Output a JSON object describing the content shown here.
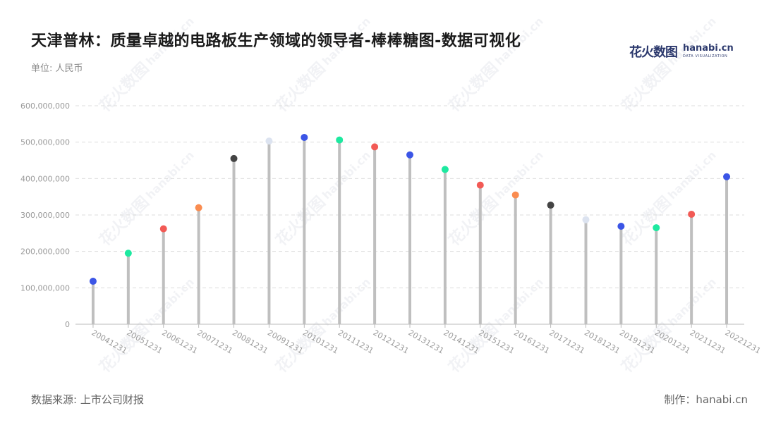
{
  "title": "天津普林：质量卓越的电路板生产领域的领导者-棒棒糖图-数据可视化",
  "unit_label": "单位: 人民币",
  "brand": {
    "zh": "花火数图",
    "en": "hanabi.cn",
    "sub": "DATA VISUALIZATION",
    "primary_color": "#2d3a6e"
  },
  "footer": {
    "source": "数据来源: 上市公司财报",
    "maker": "制作：hanabi.cn"
  },
  "chart_data": {
    "type": "lollipop",
    "title": "天津普林：质量卓越的电路板生产领域的领导者-棒棒糖图-数据可视化",
    "ylabel": "单位: 人民币",
    "ylim": [
      0,
      600000000
    ],
    "y_ticks": [
      0,
      100000000,
      200000000,
      300000000,
      400000000,
      500000000,
      600000000
    ],
    "y_tick_labels": [
      "0",
      "100,000,000",
      "200,000,000",
      "300,000,000",
      "400,000,000",
      "500,000,000",
      "600,000,000"
    ],
    "grid": true,
    "stem_color": "#bfbfbf",
    "categories": [
      "20041231",
      "20051231",
      "20061231",
      "20071231",
      "20081231",
      "20091231",
      "20101231",
      "20111231",
      "20121231",
      "20131231",
      "20141231",
      "20151231",
      "20161231",
      "20171231",
      "20181231",
      "20191231",
      "20201231",
      "20211231",
      "20221231"
    ],
    "values": [
      118000000,
      195000000,
      262000000,
      320000000,
      455000000,
      503000000,
      513000000,
      506000000,
      487000000,
      465000000,
      425000000,
      382000000,
      355000000,
      327000000,
      287000000,
      269000000,
      265000000,
      302000000,
      405000000
    ],
    "colors": [
      "#3b55e6",
      "#1de9a0",
      "#f25a55",
      "#fa8c50",
      "#444444",
      "#dce3f0",
      "#3b55e6",
      "#1de9a0",
      "#f25a55",
      "#3b55e6",
      "#1de9a0",
      "#f25a55",
      "#fa8c50",
      "#444444",
      "#dce3f0",
      "#3b55e6",
      "#1de9a0",
      "#f25a55",
      "#3b55e6"
    ]
  }
}
